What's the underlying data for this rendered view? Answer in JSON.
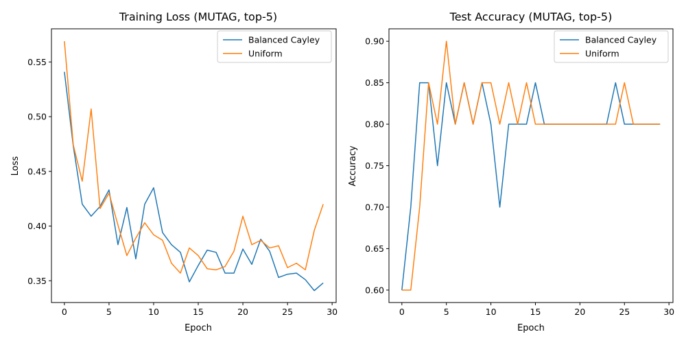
{
  "chart_data": [
    {
      "type": "line",
      "title": "Training Loss (MUTAG, top-5)",
      "xlabel": "Epoch",
      "ylabel": "Loss",
      "xlim": [
        -1.45,
        30.45
      ],
      "ylim": [
        0.3301,
        0.5803
      ],
      "xticks": [
        0,
        5,
        10,
        15,
        20,
        25,
        30
      ],
      "yticks": [
        0.35,
        0.4,
        0.45,
        0.5,
        0.55
      ],
      "xtick_labels": [
        "0",
        "5",
        "10",
        "15",
        "20",
        "25",
        "30"
      ],
      "ytick_labels": [
        "0.35",
        "0.40",
        "0.45",
        "0.50",
        "0.55"
      ],
      "grid": false,
      "legend": "top-right",
      "x": [
        0,
        1,
        2,
        3,
        4,
        5,
        6,
        7,
        8,
        9,
        10,
        11,
        12,
        13,
        14,
        15,
        16,
        17,
        18,
        19,
        20,
        21,
        22,
        23,
        24,
        25,
        26,
        27,
        28,
        29
      ],
      "series": [
        {
          "name": "Balanced Cayley",
          "color": "#1f77b4",
          "values": [
            0.541,
            0.473,
            0.42,
            0.409,
            0.418,
            0.433,
            0.383,
            0.417,
            0.37,
            0.42,
            0.435,
            0.394,
            0.383,
            0.376,
            0.349,
            0.364,
            0.378,
            0.376,
            0.357,
            0.357,
            0.379,
            0.365,
            0.388,
            0.377,
            0.353,
            0.356,
            0.357,
            0.351,
            0.341,
            0.348
          ]
        },
        {
          "name": "Uniform",
          "color": "#ff7f0e",
          "values": [
            0.569,
            0.474,
            0.441,
            0.507,
            0.416,
            0.43,
            0.401,
            0.373,
            0.389,
            0.403,
            0.392,
            0.387,
            0.366,
            0.357,
            0.38,
            0.373,
            0.361,
            0.36,
            0.363,
            0.377,
            0.409,
            0.383,
            0.387,
            0.38,
            0.382,
            0.362,
            0.366,
            0.36,
            0.396,
            0.42
          ]
        }
      ]
    },
    {
      "type": "line",
      "title": "Test Accuracy (MUTAG, top-5)",
      "xlabel": "Epoch",
      "ylabel": "Accuracy",
      "xlim": [
        -1.45,
        30.45
      ],
      "ylim": [
        0.585,
        0.915
      ],
      "xticks": [
        0,
        5,
        10,
        15,
        20,
        25,
        30
      ],
      "yticks": [
        0.6,
        0.65,
        0.7,
        0.75,
        0.8,
        0.85,
        0.9
      ],
      "xtick_labels": [
        "0",
        "5",
        "10",
        "15",
        "20",
        "25",
        "30"
      ],
      "ytick_labels": [
        "0.60",
        "0.65",
        "0.70",
        "0.75",
        "0.80",
        "0.85",
        "0.90"
      ],
      "grid": false,
      "legend": "top-right",
      "x": [
        0,
        1,
        2,
        3,
        4,
        5,
        6,
        7,
        8,
        9,
        10,
        11,
        12,
        13,
        14,
        15,
        16,
        17,
        18,
        19,
        20,
        21,
        22,
        23,
        24,
        25,
        26,
        27,
        28,
        29
      ],
      "series": [
        {
          "name": "Balanced Cayley",
          "color": "#1f77b4",
          "values": [
            0.6,
            0.7,
            0.85,
            0.85,
            0.75,
            0.85,
            0.8,
            0.85,
            0.8,
            0.85,
            0.8,
            0.7,
            0.8,
            0.8,
            0.8,
            0.85,
            0.8,
            0.8,
            0.8,
            0.8,
            0.8,
            0.8,
            0.8,
            0.8,
            0.85,
            0.8,
            0.8,
            0.8,
            0.8,
            0.8
          ]
        },
        {
          "name": "Uniform",
          "color": "#ff7f0e",
          "values": [
            0.6,
            0.6,
            0.7,
            0.85,
            0.8,
            0.9,
            0.8,
            0.85,
            0.8,
            0.85,
            0.85,
            0.8,
            0.85,
            0.8,
            0.85,
            0.8,
            0.8,
            0.8,
            0.8,
            0.8,
            0.8,
            0.8,
            0.8,
            0.8,
            0.8,
            0.85,
            0.8,
            0.8,
            0.8,
            0.8
          ]
        }
      ]
    }
  ]
}
